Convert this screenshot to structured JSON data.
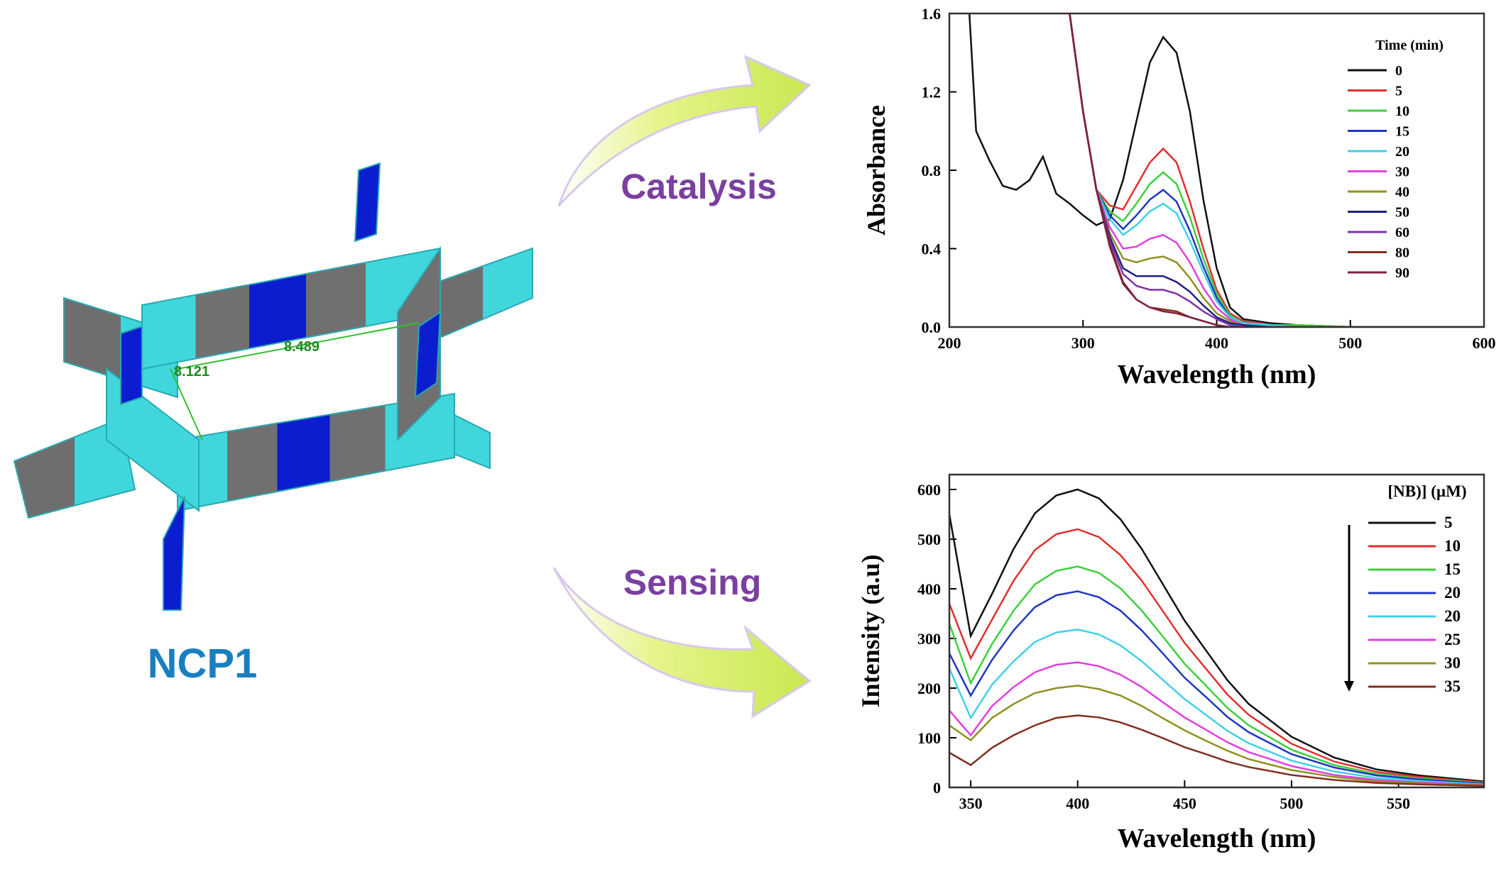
{
  "labels": {
    "catalysis": "Catalysis",
    "sensing": "Sensing",
    "compound": "NCP1",
    "distance_1": "8.121",
    "distance_2": "8.489"
  },
  "chart_data": [
    {
      "type": "line",
      "x_label": "Wavelength (nm)",
      "y_label": "Absorbance",
      "legend_title": "Time (min)",
      "x": [
        215,
        220,
        230,
        240,
        250,
        260,
        270,
        280,
        290,
        300,
        310,
        320,
        330,
        340,
        350,
        360,
        370,
        380,
        390,
        400,
        410,
        420,
        440,
        460,
        500,
        550,
        600
      ],
      "xlim": [
        200,
        600
      ],
      "xticks": [
        200,
        300,
        400,
        500,
        600
      ],
      "ylim": [
        0,
        1.6
      ],
      "yticks": [
        {
          "value": 0,
          "label": "0.0"
        },
        0.4,
        0.8,
        1.2,
        1.6
      ],
      "series": [
        {
          "name": "0",
          "color": "#111111",
          "values": [
            1.6,
            1.0,
            0.85,
            0.72,
            0.7,
            0.75,
            0.87,
            0.68,
            0.63,
            0.57,
            0.52,
            0.55,
            0.75,
            1.05,
            1.35,
            1.48,
            1.4,
            1.1,
            0.65,
            0.3,
            0.1,
            0.04,
            0.02,
            0.01,
            0,
            0,
            0
          ]
        },
        {
          "name": "5",
          "color": "#e03030",
          "values": [
            null,
            null,
            null,
            null,
            null,
            null,
            null,
            null,
            1.6,
            1.1,
            0.7,
            0.62,
            0.6,
            0.72,
            0.84,
            0.91,
            0.84,
            0.64,
            0.4,
            0.19,
            0.07,
            0.03,
            0.01,
            0.01,
            0,
            0,
            0
          ]
        },
        {
          "name": "10",
          "color": "#3cd03c",
          "values": [
            null,
            null,
            null,
            null,
            null,
            null,
            null,
            null,
            1.6,
            1.1,
            0.7,
            0.59,
            0.54,
            0.63,
            0.73,
            0.79,
            0.73,
            0.56,
            0.35,
            0.17,
            0.06,
            0.02,
            0.01,
            0.01,
            0,
            0,
            0
          ]
        },
        {
          "name": "15",
          "color": "#2038c0",
          "values": [
            null,
            null,
            null,
            null,
            null,
            null,
            null,
            null,
            1.6,
            1.1,
            0.7,
            0.57,
            0.5,
            0.57,
            0.65,
            0.7,
            0.64,
            0.49,
            0.31,
            0.15,
            0.05,
            0.02,
            0.01,
            0,
            0,
            0,
            0
          ]
        },
        {
          "name": "20",
          "color": "#40d0e8",
          "values": [
            null,
            null,
            null,
            null,
            null,
            null,
            null,
            null,
            1.6,
            1.1,
            0.7,
            0.55,
            0.47,
            0.52,
            0.59,
            0.63,
            0.58,
            0.44,
            0.28,
            0.13,
            0.05,
            0.02,
            0.01,
            0,
            0,
            0,
            0
          ]
        },
        {
          "name": "30",
          "color": "#e040e0",
          "values": [
            null,
            null,
            null,
            null,
            null,
            null,
            null,
            null,
            1.6,
            1.1,
            0.7,
            0.51,
            0.4,
            0.41,
            0.45,
            0.47,
            0.43,
            0.33,
            0.2,
            0.1,
            0.04,
            0.01,
            0,
            0,
            0,
            0,
            0
          ]
        },
        {
          "name": "40",
          "color": "#909020",
          "values": [
            null,
            null,
            null,
            null,
            null,
            null,
            null,
            null,
            1.6,
            1.1,
            0.7,
            0.48,
            0.35,
            0.33,
            0.35,
            0.36,
            0.33,
            0.25,
            0.15,
            0.07,
            0.03,
            0.01,
            0,
            0,
            0,
            0,
            0
          ]
        },
        {
          "name": "50",
          "color": "#202080",
          "values": [
            null,
            null,
            null,
            null,
            null,
            null,
            null,
            null,
            1.6,
            1.1,
            0.7,
            0.46,
            0.3,
            0.26,
            0.26,
            0.26,
            0.23,
            0.18,
            0.11,
            0.05,
            0.02,
            0.01,
            0,
            0,
            0,
            0,
            0
          ]
        },
        {
          "name": "60",
          "color": "#8030a8",
          "values": [
            null,
            null,
            null,
            null,
            null,
            null,
            null,
            null,
            1.6,
            1.1,
            0.7,
            0.44,
            0.27,
            0.21,
            0.19,
            0.19,
            0.17,
            0.13,
            0.08,
            0.04,
            0.01,
            0,
            0,
            0,
            0,
            0,
            0
          ]
        },
        {
          "name": "80",
          "color": "#803020",
          "values": [
            null,
            null,
            null,
            null,
            null,
            null,
            null,
            null,
            1.6,
            1.1,
            0.7,
            0.42,
            0.23,
            0.14,
            0.1,
            0.09,
            0.08,
            0.05,
            0.03,
            0.01,
            0,
            0,
            0,
            0,
            0,
            0,
            0
          ]
        },
        {
          "name": "90",
          "color": "#802040",
          "values": [
            null,
            null,
            null,
            null,
            null,
            null,
            null,
            null,
            1.6,
            1.1,
            0.7,
            0.41,
            0.22,
            0.14,
            0.1,
            0.08,
            0.07,
            0.05,
            0.03,
            0.01,
            0,
            0,
            0,
            0,
            0,
            0,
            0
          ]
        }
      ]
    },
    {
      "type": "line",
      "x_label": "Wavelength (nm)",
      "y_label": "Intensity (a.u)",
      "legend_title": "[NB)] (µM)",
      "x": [
        340,
        350,
        360,
        370,
        380,
        390,
        400,
        410,
        420,
        430,
        440,
        450,
        460,
        470,
        480,
        500,
        520,
        540,
        560,
        590
      ],
      "xlim": [
        340,
        590
      ],
      "xticks": [
        350,
        400,
        450,
        500,
        550
      ],
      "ylim": [
        0,
        630
      ],
      "yticks": [
        0,
        100,
        200,
        300,
        400,
        500,
        600
      ],
      "series": [
        {
          "name": "5",
          "color": "#111111",
          "values": [
            550,
            305,
            390,
            480,
            552,
            588,
            600,
            582,
            540,
            480,
            408,
            336,
            276,
            216,
            168,
            102,
            60,
            36,
            24,
            12
          ]
        },
        {
          "name": "10",
          "color": "#e03030",
          "values": [
            370,
            260,
            338,
            416,
            478,
            510,
            520,
            504,
            468,
            416,
            354,
            291,
            239,
            187,
            146,
            88,
            52,
            31,
            21,
            10
          ]
        },
        {
          "name": "15",
          "color": "#3cd03c",
          "values": [
            330,
            210,
            289,
            356,
            409,
            436,
            445,
            432,
            401,
            356,
            303,
            249,
            205,
            160,
            125,
            76,
            45,
            27,
            18,
            9
          ]
        },
        {
          "name": "20",
          "color": "#2038c0",
          "values": [
            270,
            185,
            257,
            316,
            363,
            387,
            395,
            383,
            356,
            316,
            269,
            221,
            182,
            142,
            111,
            67,
            40,
            24,
            16,
            8
          ]
        },
        {
          "name": "20",
          "color": "#40d0e8",
          "values": [
            240,
            140,
            207,
            254,
            293,
            312,
            318,
            308,
            286,
            254,
            216,
            178,
            146,
            114,
            89,
            54,
            32,
            19,
            13,
            6
          ]
        },
        {
          "name": "25",
          "color": "#e040e0",
          "values": [
            155,
            105,
            164,
            202,
            232,
            247,
            252,
            244,
            227,
            202,
            171,
            141,
            116,
            91,
            71,
            43,
            25,
            15,
            10,
            5
          ]
        },
        {
          "name": "30",
          "color": "#909020",
          "values": [
            125,
            95,
            140,
            168,
            190,
            200,
            205,
            198,
            185,
            164,
            139,
            115,
            94,
            74,
            57,
            35,
            21,
            12,
            8,
            4
          ]
        },
        {
          "name": "35",
          "color": "#803020",
          "values": [
            70,
            45,
            80,
            105,
            125,
            140,
            145,
            141,
            131,
            116,
            99,
            81,
            67,
            52,
            41,
            25,
            15,
            9,
            6,
            3
          ]
        }
      ]
    }
  ]
}
